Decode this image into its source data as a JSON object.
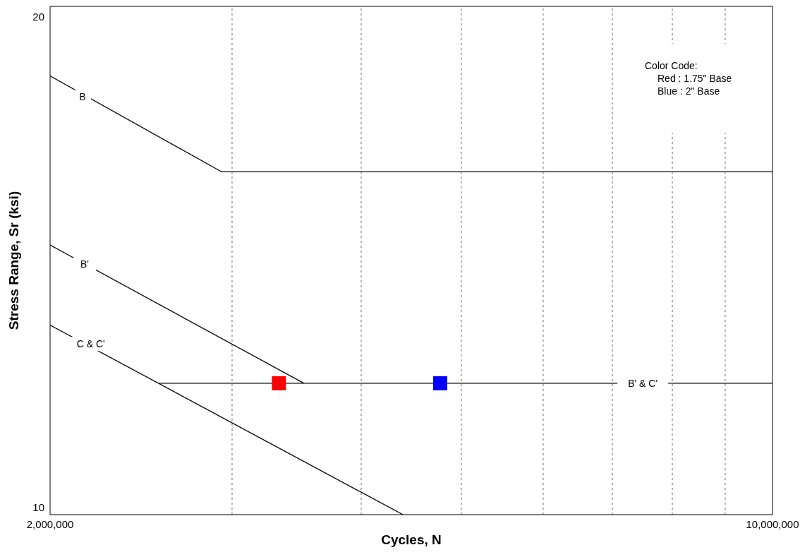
{
  "chart_data": {
    "type": "line",
    "xlabel": "Cycles, N",
    "ylabel": "Stress Range, Sr (ksi)",
    "log": "xy",
    "grid": "x",
    "line_style": "solid",
    "marker": "none",
    "xlim": [
      2000000,
      10000000
    ],
    "ylim": [
      9.9,
      20.3
    ],
    "xticks": [
      {
        "value": 2000000,
        "label": "2,000,000"
      },
      {
        "value": 3000000,
        "label": null
      },
      {
        "value": 4000000,
        "label": null
      },
      {
        "value": 5000000,
        "label": null
      },
      {
        "value": 6000000,
        "label": null
      },
      {
        "value": 7000000,
        "label": null
      },
      {
        "value": 8000000,
        "label": null
      },
      {
        "value": 9000000,
        "label": null
      },
      {
        "value": 10000000,
        "label": "10,000,000"
      }
    ],
    "yticks": [
      10,
      20
    ],
    "series": [
      {
        "color": "#000000",
        "x": [
          2000000,
          2930000,
          10000000
        ],
        "values": [
          18.4,
          16.07,
          16.07
        ]
      },
      {
        "color": "#000000",
        "x": [
          2000000,
          3520000
        ],
        "values": [
          14.49,
          11.92
        ]
      },
      {
        "color": "#000000",
        "x": [
          2000000,
          4390000
        ],
        "values": [
          12.94,
          9.9
        ]
      },
      {
        "color": "#000000",
        "x": [
          2550000,
          10000000
        ],
        "values": [
          11.92,
          11.92
        ]
      },
      {
        "type": "scatter",
        "marker": "square",
        "color": "#ff0000",
        "x": [
          3330000
        ],
        "values": [
          11.92
        ]
      },
      {
        "type": "scatter",
        "marker": "square",
        "color": "#0000ff",
        "x": [
          4770000
        ],
        "values": [
          11.92
        ]
      }
    ],
    "annotations": [
      {
        "text": "B",
        "x": 2150000,
        "y": 17.86
      },
      {
        "text": "B'",
        "x": 2160000,
        "y": 14.1
      },
      {
        "text": "C & C'",
        "x": 2190000,
        "y": 12.6
      },
      {
        "text": "B' & C'",
        "x": 7490000,
        "y": 11.92
      },
      "Color Code:",
      "Red : 1.75\" Base",
      "Blue : 2\" Base"
    ]
  }
}
